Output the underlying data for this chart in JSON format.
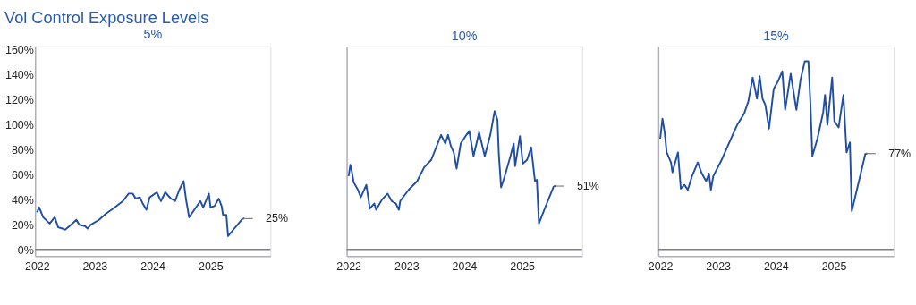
{
  "chart_data": [
    {
      "type": "line",
      "title": "Vol Control Exposure Levels",
      "subtitle": "5%",
      "xlim": [
        "2021-12-20",
        "2026-01-15"
      ],
      "xticks": [
        {
          "value": "2022-01-01",
          "label": "2022"
        },
        {
          "value": "2023-01-01",
          "label": "2023"
        },
        {
          "value": "2024-01-01",
          "label": "2024"
        },
        {
          "value": "2025-01-01",
          "label": "2025"
        }
      ],
      "ylim": [
        -5,
        163
      ],
      "yticks": [
        {
          "value": 0,
          "label": "0%"
        },
        {
          "value": 20,
          "label": "20%"
        },
        {
          "value": 40,
          "label": "40%"
        },
        {
          "value": 60,
          "label": "60%"
        },
        {
          "value": 80,
          "label": "80%"
        },
        {
          "value": 100,
          "label": "100%"
        },
        {
          "value": 120,
          "label": "120%"
        },
        {
          "value": 140,
          "label": "140%"
        },
        {
          "value": 160,
          "label": "160%"
        }
      ],
      "grid": false,
      "legend": false,
      "ref_lines": [
        {
          "axis": "y",
          "value": 0,
          "color": "#7f7f85"
        }
      ],
      "annotations": [
        {
          "text": "25%",
          "x": "2025-07-23",
          "y": 25
        }
      ],
      "series": [
        {
          "color": "#1f4ea3",
          "x": [
            "2022-01-01",
            "2022-01-15",
            "2022-01-24",
            "2022-02-09",
            "2022-03-22",
            "2022-04-23",
            "2022-05-15",
            "2022-06-10",
            "2022-06-28",
            "2022-07-25",
            "2022-09-07",
            "2022-09-25",
            "2022-10-31",
            "2022-11-17",
            "2022-12-05",
            "2023-01-28",
            "2023-03-13",
            "2023-04-27",
            "2023-06-28",
            "2023-08-03",
            "2023-08-29",
            "2023-09-16",
            "2023-10-13",
            "2023-10-31",
            "2023-11-23",
            "2023-12-14",
            "2024-01-28",
            "2024-02-23",
            "2024-03-21",
            "2024-04-26",
            "2024-05-22",
            "2024-06-18",
            "2024-07-15",
            "2024-08-01",
            "2024-08-19",
            "2024-09-15",
            "2024-10-29",
            "2024-11-16",
            "2024-12-22",
            "2025-01-01",
            "2025-01-26",
            "2025-02-22",
            "2025-03-12",
            "2025-03-21",
            "2025-04-11",
            "2025-04-22",
            "2025-05-31",
            "2025-07-23"
          ],
          "values": [
            30,
            34,
            31,
            26,
            21,
            26,
            18,
            17,
            16,
            19,
            24,
            20,
            19,
            17,
            20,
            24,
            29,
            33,
            39,
            45,
            45,
            41,
            42,
            37,
            32,
            42,
            46,
            39,
            46,
            41,
            39,
            48,
            55,
            39,
            26,
            31,
            39,
            34,
            45,
            34,
            35,
            41,
            35,
            28,
            28,
            11,
            17,
            25
          ]
        }
      ]
    },
    {
      "type": "line",
      "subtitle": "10%",
      "xlim": [
        "2021-12-20",
        "2026-01-15"
      ],
      "xticks": [
        {
          "value": "2022-01-01",
          "label": "2022"
        },
        {
          "value": "2023-01-01",
          "label": "2023"
        },
        {
          "value": "2024-01-01",
          "label": "2024"
        },
        {
          "value": "2025-01-01",
          "label": "2025"
        }
      ],
      "ylim": [
        -5,
        163
      ],
      "tick_labels": "x",
      "grid": false,
      "legend": false,
      "ref_lines": [
        {
          "axis": "y",
          "value": 0,
          "color": "#7f7f85"
        }
      ],
      "annotations": [
        {
          "text": "51%",
          "x": "2025-07-20",
          "y": 51
        }
      ],
      "series": [
        {
          "color": "#1f4ea3",
          "x": [
            "2022-01-01",
            "2022-01-12",
            "2022-01-21",
            "2022-02-02",
            "2022-03-01",
            "2022-03-19",
            "2022-04-23",
            "2022-05-15",
            "2022-06-12",
            "2022-06-24",
            "2022-07-30",
            "2022-09-04",
            "2022-09-30",
            "2022-10-27",
            "2022-11-14",
            "2022-11-23",
            "2023-01-15",
            "2023-03-10",
            "2023-04-23",
            "2023-06-07",
            "2023-08-08",
            "2023-09-04",
            "2023-09-21",
            "2023-10-09",
            "2023-10-27",
            "2023-11-14",
            "2023-12-10",
            "2024-01-15",
            "2024-02-02",
            "2024-02-29",
            "2024-04-04",
            "2024-05-10",
            "2024-06-14",
            "2024-07-11",
            "2024-07-29",
            "2024-08-07",
            "2024-08-21",
            "2024-09-11",
            "2024-10-17",
            "2024-11-09",
            "2024-11-18",
            "2024-12-18",
            "2025-01-05",
            "2025-02-01",
            "2025-02-27",
            "2025-03-23",
            "2025-04-04",
            "2025-04-17",
            "2025-05-27",
            "2025-07-20"
          ],
          "values": [
            59,
            68,
            63,
            54,
            48,
            42,
            52,
            33,
            37,
            32,
            40,
            45,
            39,
            37,
            32,
            39,
            48,
            55,
            66,
            72,
            92,
            85,
            92,
            83,
            78,
            65,
            85,
            92,
            95,
            75,
            94,
            75,
            92,
            111,
            104,
            76,
            50,
            58,
            74,
            85,
            67,
            91,
            69,
            72,
            82,
            55,
            56,
            21,
            34,
            51
          ]
        }
      ]
    },
    {
      "type": "line",
      "subtitle": "15%",
      "xlim": [
        "2021-12-20",
        "2026-01-15"
      ],
      "xticks": [
        {
          "value": "2022-01-01",
          "label": "2022"
        },
        {
          "value": "2023-01-01",
          "label": "2023"
        },
        {
          "value": "2024-01-01",
          "label": "2024"
        },
        {
          "value": "2025-01-01",
          "label": "2025"
        }
      ],
      "ylim": [
        -5,
        163
      ],
      "tick_labels": "x",
      "grid": false,
      "legend": false,
      "ref_lines": [
        {
          "axis": "y",
          "value": 0,
          "color": "#7f7f85"
        }
      ],
      "annotations": [
        {
          "text": "77%",
          "x": "2025-07-20",
          "y": 77
        }
      ],
      "series": [
        {
          "color": "#1f4ea3",
          "x": [
            "2022-01-01",
            "2022-01-15",
            "2022-01-29",
            "2022-02-11",
            "2022-03-10",
            "2022-03-19",
            "2022-04-23",
            "2022-05-11",
            "2022-06-03",
            "2022-06-24",
            "2022-07-21",
            "2022-08-26",
            "2022-09-21",
            "2022-10-18",
            "2022-11-05",
            "2022-11-17",
            "2022-12-02",
            "2023-01-24",
            "2023-03-10",
            "2023-05-02",
            "2023-06-15",
            "2023-07-12",
            "2023-08-08",
            "2023-09-04",
            "2023-09-21",
            "2023-10-09",
            "2023-10-27",
            "2023-11-19",
            "2023-12-19",
            "2024-01-15",
            "2024-02-11",
            "2024-02-29",
            "2024-04-04",
            "2024-05-10",
            "2024-06-05",
            "2024-07-02",
            "2024-07-25",
            "2024-08-07",
            "2024-08-19",
            "2024-09-20",
            "2024-10-26",
            "2024-11-07",
            "2024-11-22",
            "2024-12-22",
            "2025-01-05",
            "2025-02-01",
            "2025-03-03",
            "2025-03-23",
            "2025-04-13",
            "2025-04-25",
            "2025-05-27",
            "2025-07-20"
          ],
          "values": [
            89,
            105,
            94,
            78,
            70,
            62,
            78,
            49,
            52,
            48,
            59,
            70,
            61,
            55,
            61,
            48,
            59,
            72,
            85,
            100,
            109,
            119,
            138,
            121,
            139,
            121,
            116,
            97,
            129,
            135,
            143,
            112,
            141,
            112,
            136,
            151,
            151,
            116,
            75,
            89,
            110,
            124,
            100,
            138,
            103,
            98,
            124,
            78,
            86,
            31,
            48,
            77
          ]
        }
      ]
    }
  ]
}
